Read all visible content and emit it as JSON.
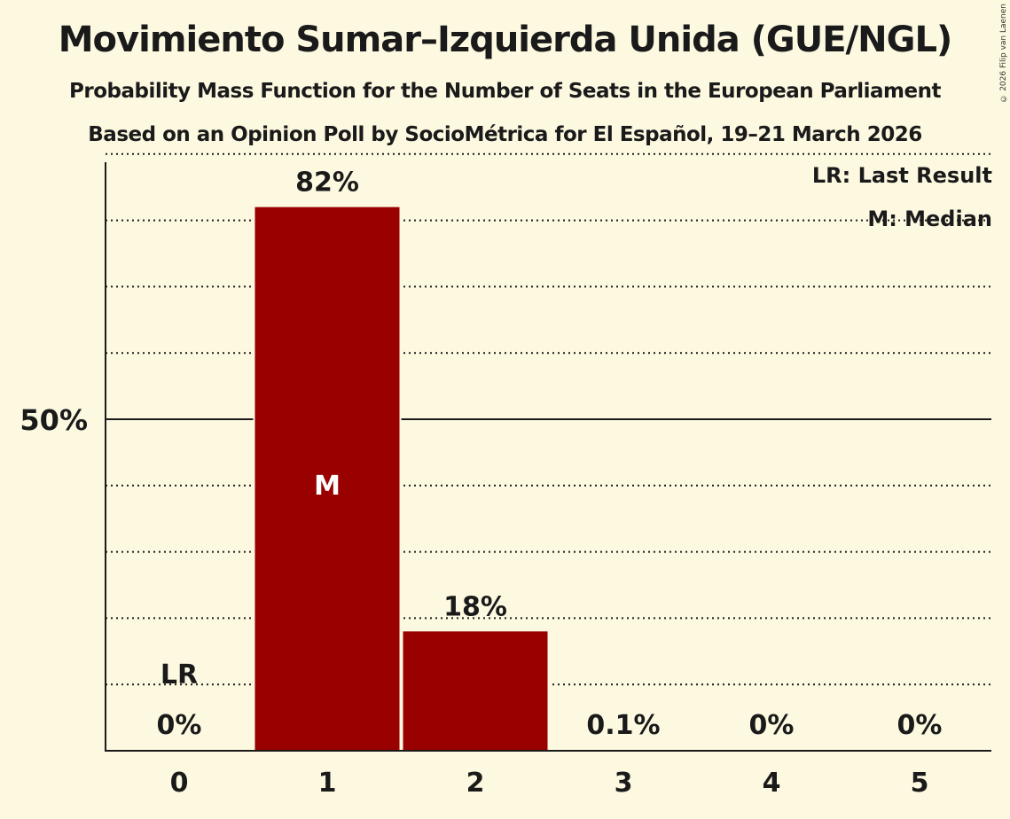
{
  "title": "Movimiento Sumar–Izquierda Unida (GUE/NGL)",
  "subtitle": "Probability Mass Function for the Number of Seats in the European Parliament",
  "subtitle2": "Based on an Opinion Poll by SocioMétrica for El Español, 19–21 March 2026",
  "copyright": "© 2026 Filip van Laenen",
  "legend": {
    "last_result": "LR: Last Result",
    "median": "M: Median"
  },
  "colors": {
    "bar": "#990000",
    "background": "#fdf9e1",
    "text": "#1a1a1a"
  },
  "chart_data": {
    "type": "bar",
    "title": "Movimiento Sumar–Izquierda Unida (GUE/NGL)",
    "subtitle": "Probability Mass Function for the Number of Seats in the European Parliament",
    "xlabel": "",
    "ylabel": "",
    "categories": [
      "0",
      "1",
      "2",
      "3",
      "4",
      "5"
    ],
    "values": [
      0,
      82,
      18,
      0.1,
      0,
      0
    ],
    "value_labels": [
      "0%",
      "82%",
      "18%",
      "0.1%",
      "0%",
      "0%"
    ],
    "ylim": [
      0,
      100
    ],
    "yticks": [
      {
        "value": 50,
        "label": "50%"
      }
    ],
    "gridlines_every": 10,
    "annotations": [
      {
        "category": "0",
        "label": "LR",
        "meaning": "Last Result"
      },
      {
        "category": "1",
        "label": "M",
        "meaning": "Median"
      }
    ],
    "legend_position": "top-right"
  }
}
